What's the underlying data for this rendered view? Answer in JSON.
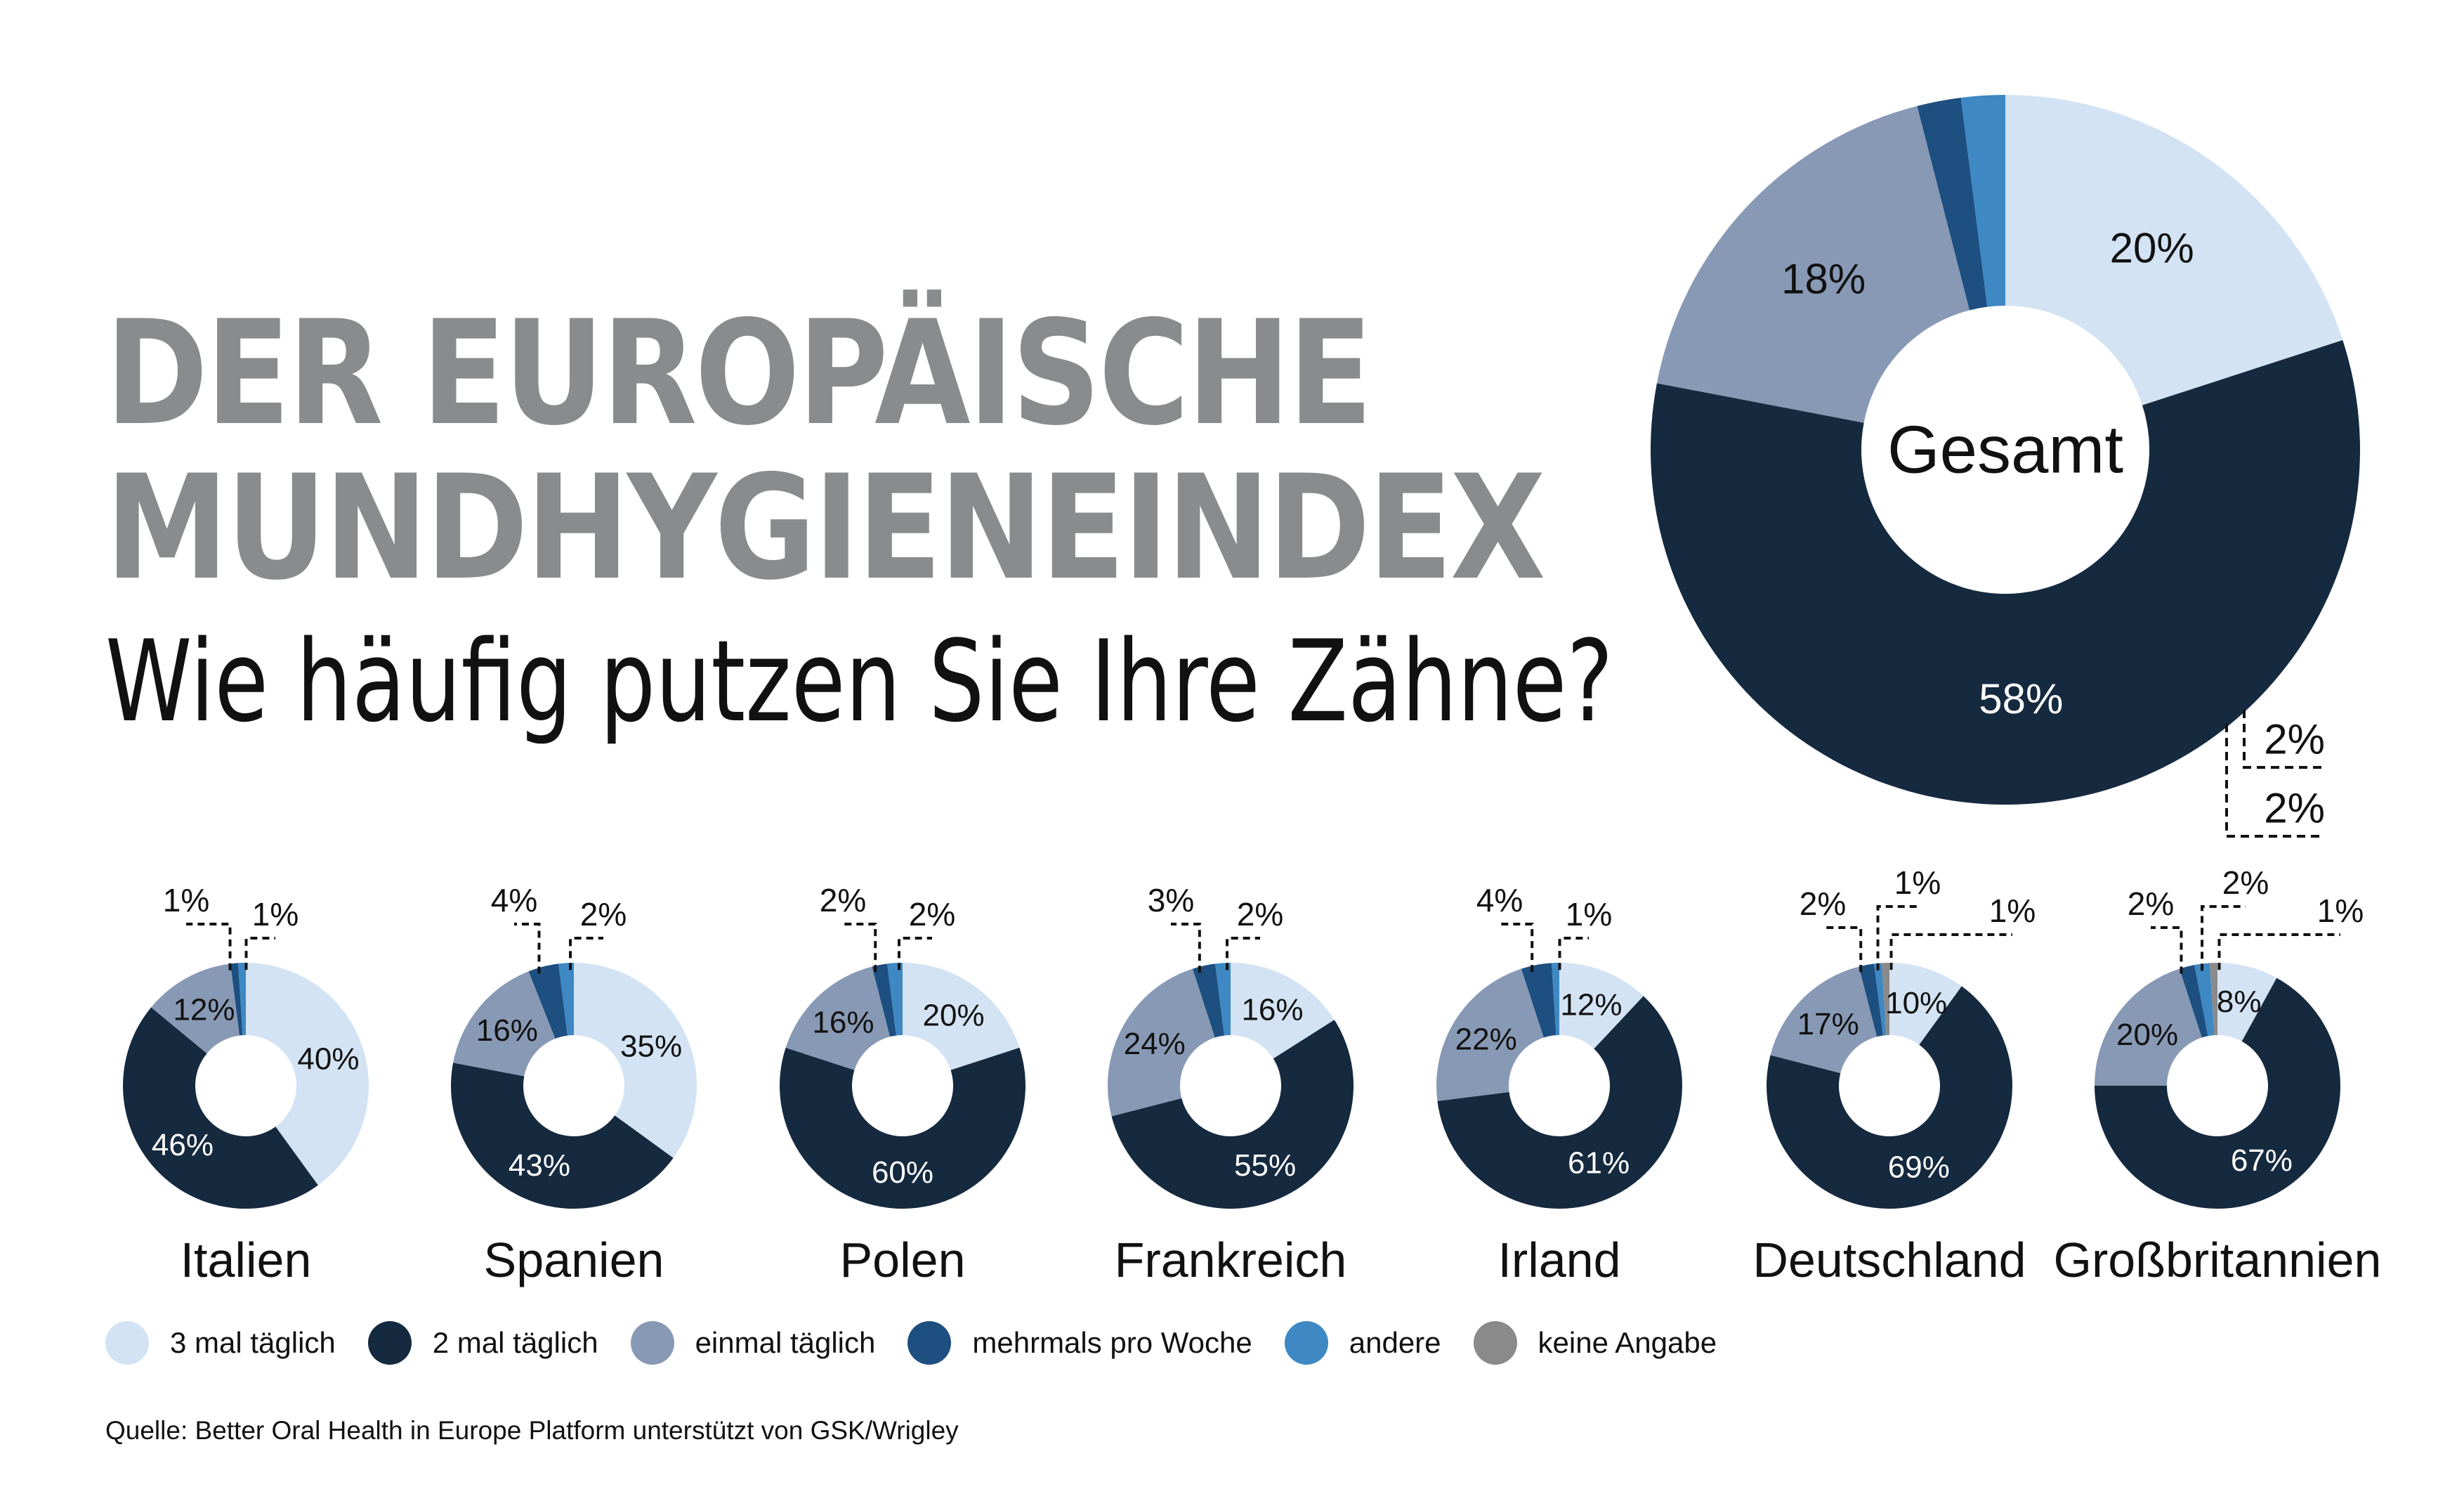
{
  "title": {
    "line1": "DER EUROPÄISCHE",
    "line2": "MUNDHYGIENEINDEX",
    "subtitle": "Wie häufig putzen Sie Ihre Zähne?"
  },
  "colors": {
    "3 mal täglich": "#d3e3f3",
    "2 mal täglich": "#15293f",
    "einmal täglich": "#8899b5",
    "mehrmals pro Woche": "#1d4f80",
    "andere": "#3e88c3",
    "keine Angabe": "#8a8a8a"
  },
  "legend": [
    {
      "label": "3 mal täglich",
      "color": "#d3e3f3"
    },
    {
      "label": "2 mal täglich",
      "color": "#15293f"
    },
    {
      "label": "einmal täglich",
      "color": "#8899b5"
    },
    {
      "label": "mehrmals pro Woche",
      "color": "#1d4f80"
    },
    {
      "label": "andere",
      "color": "#3e88c3"
    },
    {
      "label": "keine Angabe",
      "color": "#8a8a8a"
    }
  ],
  "chart_data": {
    "type": "pie",
    "categories": [
      "3 mal täglich",
      "2 mal täglich",
      "einmal täglich",
      "mehrmals pro Woche",
      "andere",
      "keine Angabe"
    ],
    "total": {
      "name": "Gesamt",
      "values": [
        20,
        58,
        18,
        2,
        2,
        0
      ]
    },
    "series": [
      {
        "name": "Italien",
        "values": [
          40,
          46,
          12,
          1,
          1,
          0
        ]
      },
      {
        "name": "Spanien",
        "values": [
          35,
          43,
          16,
          4,
          2,
          0
        ]
      },
      {
        "name": "Polen",
        "values": [
          20,
          60,
          16,
          2,
          2,
          0
        ]
      },
      {
        "name": "Frankreich",
        "values": [
          16,
          55,
          24,
          3,
          2,
          0
        ]
      },
      {
        "name": "Irland",
        "values": [
          12,
          61,
          22,
          4,
          1,
          0
        ]
      },
      {
        "name": "Deutschland",
        "values": [
          10,
          69,
          17,
          2,
          1,
          1
        ]
      },
      {
        "name": "Großbritannien",
        "values": [
          8,
          67,
          20,
          2,
          2,
          1
        ]
      }
    ],
    "legend_position": "bottom"
  },
  "source": "Quelle: Better Oral Health in Europe Platform unterstützt von GSK/Wrigley"
}
